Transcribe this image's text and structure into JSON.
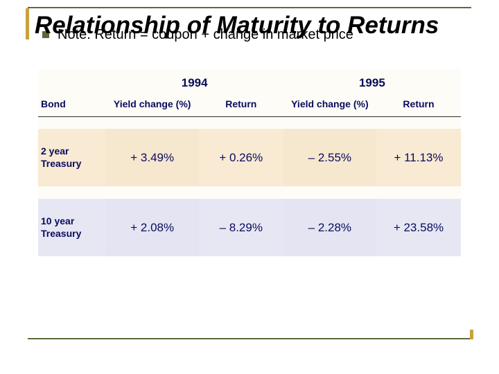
{
  "title": "Relationship of Maturity to Returns",
  "note": "Note:  Return = coupon + change in market price",
  "colors": {
    "rule": "#5b6a3a",
    "accent": "#c9a23a",
    "heading_text": "#0a0a5c",
    "row_warm": "#f6e7cf",
    "row_cool": "#e4e4f2",
    "header_bg": "#fdfcf7"
  },
  "table": {
    "years": [
      "1994",
      "1995"
    ],
    "columns": [
      "Bond",
      "Yield change (%)",
      "Return",
      "Yield change (%)",
      "Return"
    ],
    "rows": [
      {
        "bond_line1": "2  year",
        "bond_line2": "Treasury",
        "yield_94": "+ 3.49%",
        "return_94": "+ 0.26%",
        "yield_95": "– 2.55%",
        "return_95": "+ 11.13%"
      },
      {
        "bond_line1": "10  year",
        "bond_line2": "Treasury",
        "yield_94": "+ 2.08%",
        "return_94": "– 8.29%",
        "yield_95": "– 2.28%",
        "return_95": "+ 23.58%"
      }
    ]
  }
}
